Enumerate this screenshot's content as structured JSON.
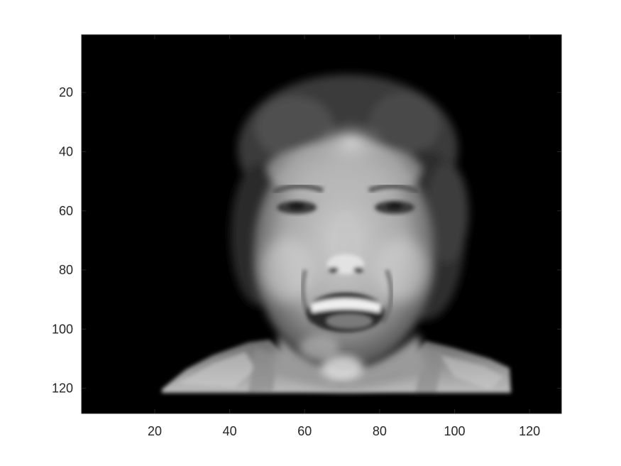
{
  "figure": {
    "image_description_label": "grayscale face image",
    "colors": {
      "background": "#ffffff",
      "axes_frame": "#262626",
      "image_background": "#000000"
    }
  },
  "chart_data": {
    "type": "heatmap",
    "colormap": "gray",
    "xlim": [
      0.5,
      128.5
    ],
    "ylim": [
      0.5,
      128.5
    ],
    "y_direction": "reverse",
    "grid": false,
    "x_ticks": [
      20,
      40,
      60,
      80,
      100,
      120
    ],
    "x_tick_labels": [
      "20",
      "40",
      "60",
      "80",
      "100",
      "120"
    ],
    "y_ticks": [
      20,
      40,
      60,
      80,
      100,
      120
    ],
    "y_tick_labels": [
      "20",
      "40",
      "60",
      "80",
      "100",
      "120"
    ]
  }
}
